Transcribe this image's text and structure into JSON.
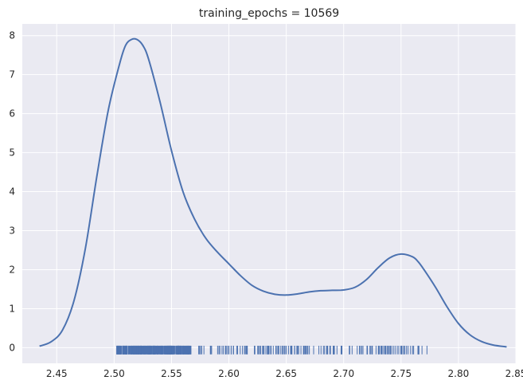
{
  "chart_data": {
    "type": "line",
    "title": "training_epochs = 10569",
    "xlabel": "",
    "ylabel": "",
    "xlim": [
      2.42,
      2.85
    ],
    "ylim": [
      -0.4,
      8.3
    ],
    "grid": true,
    "xticks": [
      "2.45",
      "2.50",
      "2.55",
      "2.60",
      "2.65",
      "2.70",
      "2.75",
      "2.80",
      "2.85"
    ],
    "yticks": [
      "0",
      "1",
      "2",
      "3",
      "4",
      "5",
      "6",
      "7",
      "8"
    ],
    "colors": {
      "line": "#4c72b0",
      "background": "#eaeaf2",
      "grid": "#ffffff"
    },
    "series": [
      {
        "kind": "density",
        "x": [
          2.435,
          2.445,
          2.455,
          2.465,
          2.475,
          2.485,
          2.495,
          2.505,
          2.51,
          2.515,
          2.52,
          2.525,
          2.53,
          2.54,
          2.55,
          2.56,
          2.57,
          2.58,
          2.59,
          2.6,
          2.61,
          2.62,
          2.63,
          2.64,
          2.65,
          2.66,
          2.67,
          2.68,
          2.69,
          2.7,
          2.71,
          2.72,
          2.73,
          2.74,
          2.75,
          2.76,
          2.765,
          2.77,
          2.78,
          2.79,
          2.8,
          2.81,
          2.82,
          2.83,
          2.842
        ],
        "y": [
          0.04,
          0.15,
          0.45,
          1.2,
          2.55,
          4.4,
          6.1,
          7.3,
          7.75,
          7.9,
          7.9,
          7.75,
          7.4,
          6.3,
          5.05,
          4.0,
          3.3,
          2.8,
          2.45,
          2.15,
          1.85,
          1.6,
          1.45,
          1.37,
          1.35,
          1.38,
          1.43,
          1.46,
          1.47,
          1.48,
          1.55,
          1.75,
          2.05,
          2.3,
          2.4,
          2.33,
          2.2,
          2.0,
          1.55,
          1.05,
          0.62,
          0.33,
          0.16,
          0.07,
          0.02
        ]
      }
    ],
    "rug": {
      "x_range": [
        2.502,
        2.773
      ],
      "sparse_range": [
        2.57,
        2.773
      ],
      "gaps": [
        [
          2.567,
          2.572
        ]
      ]
    }
  }
}
